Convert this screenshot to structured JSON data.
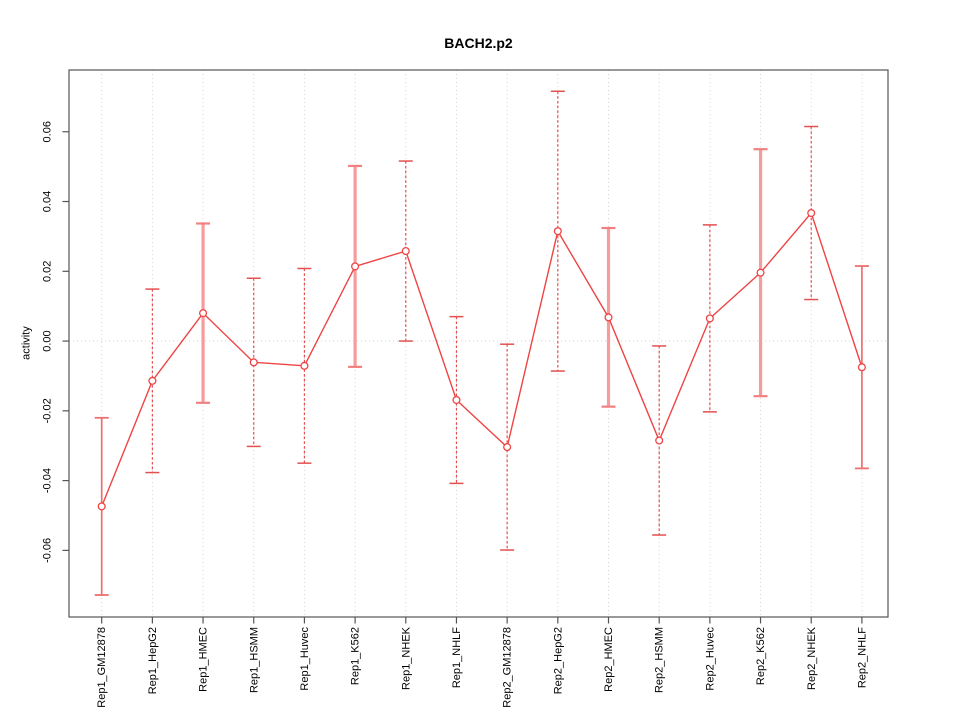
{
  "chart_data": {
    "type": "line",
    "title": "BACH2.p2",
    "xlabel": "",
    "ylabel": "activity",
    "legend": "none",
    "grid": "dotted vertical line at each category; dotted horizontal line at 0 only",
    "categories": [
      "Rep1_GM12878",
      "Rep1_HepG2",
      "Rep1_HMEC",
      "Rep1_HSMM",
      "Rep1_Huvec",
      "Rep1_K562",
      "Rep1_NHEK",
      "Rep1_NHLF",
      "Rep2_GM12878",
      "Rep2_HepG2",
      "Rep2_HMEC",
      "Rep2_HSMM",
      "Rep2_Huvec",
      "Rep2_K562",
      "Rep2_NHEK",
      "Rep2_NHLF"
    ],
    "series": [
      {
        "name": "activity",
        "values": [
          -0.0474,
          -0.0114,
          0.008,
          -0.0061,
          -0.0071,
          0.0214,
          0.0258,
          -0.0169,
          -0.0304,
          0.0315,
          0.0068,
          -0.0285,
          0.0065,
          0.0196,
          0.0367,
          -0.0075
        ],
        "errors": [
          0.0254,
          0.0263,
          0.0257,
          0.0241,
          0.0279,
          0.0288,
          0.0258,
          0.0239,
          0.0295,
          0.0401,
          0.0256,
          0.0271,
          0.0268,
          0.0354,
          0.0248,
          0.029
        ]
      }
    ],
    "error_bar_styles": [
      "medium",
      "thin",
      "thick",
      "thin",
      "thin",
      "thick",
      "thin",
      "thin",
      "thin",
      "thin",
      "thick",
      "thin",
      "thin",
      "thick",
      "thin",
      "medium"
    ],
    "yticks": [
      "-0.06",
      "-0.04",
      "-0.02",
      "0.00",
      "0.02",
      "0.04",
      "0.06"
    ],
    "ylim": [
      -0.0791,
      0.0777
    ],
    "colors": {
      "line": "#ef4444",
      "point_fill": "#ffffff",
      "errorbar_thin": "#e35050",
      "errorbar_medium": "#ee6f6f",
      "errorbar_thick": "#f79c9c",
      "errorbar_thick_cap": "#f28080",
      "grid": "#d4d4d4",
      "axis": "#555555",
      "text": "#000000",
      "background": "#ffffff"
    }
  }
}
